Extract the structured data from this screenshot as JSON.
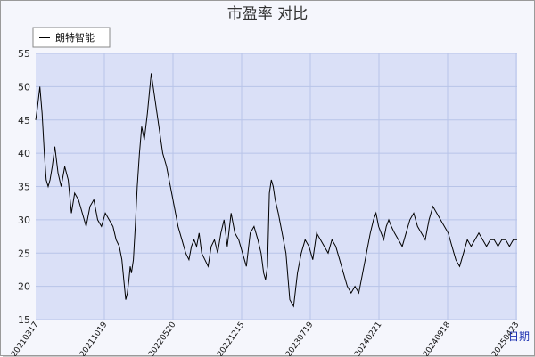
{
  "chart_data": {
    "type": "line",
    "title": "市盈率  对比",
    "xlabel": "日期",
    "ylabel": "",
    "ylim": [
      15,
      55
    ],
    "y_ticks": [
      15,
      20,
      25,
      30,
      35,
      40,
      45,
      50,
      55
    ],
    "x_tick_labels": [
      "20210317",
      "20211019",
      "20220520",
      "20221215",
      "20230719",
      "20240221",
      "20240918",
      "20250423"
    ],
    "legend": {
      "position": "top-left",
      "entries": [
        "朗特智能"
      ]
    },
    "grid": true,
    "colors": {
      "plot_bg": "#dae0f7",
      "line": "#000000",
      "grid": "#b8c4e8",
      "xlabel": "#1a2fb0"
    },
    "series": [
      {
        "name": "朗特智能",
        "x": [
          0,
          6,
          13,
          20,
          27,
          33,
          39,
          45,
          52,
          60,
          70,
          80,
          91,
          102,
          112,
          122,
          134,
          146,
          158,
          170,
          182,
          194,
          206,
          218,
          230,
          242,
          252,
          262,
          270,
          276,
          282,
          287,
          292,
          296,
          300,
          306,
          312,
          318,
          325,
          332,
          340,
          350,
          362,
          374,
          386,
          398,
          410,
          422,
          434,
          446,
          458,
          470,
          480,
          488,
          496,
          504,
          512,
          520,
          530,
          540,
          550,
          560,
          570,
          580,
          590,
          600,
          612,
          624,
          636,
          648,
          660,
          672,
          684,
          696,
          706,
          714,
          720,
          726,
          732,
          738,
          744,
          750,
          760,
          772,
          784,
          796,
          808,
          820,
          832,
          844,
          856,
          868,
          880,
          892,
          904,
          916,
          928,
          940,
          952,
          964,
          976,
          988,
          1000,
          1012,
          1024,
          1036,
          1048,
          1058,
          1066,
          1074,
          1082,
          1090,
          1098,
          1106,
          1114,
          1124,
          1136,
          1148,
          1160,
          1172,
          1184,
          1196,
          1208,
          1220,
          1232,
          1244,
          1256,
          1268,
          1280,
          1292,
          1304,
          1316,
          1328,
          1340,
          1352,
          1364,
          1376,
          1388,
          1400,
          1412,
          1424,
          1436,
          1448,
          1460,
          1472,
          1484,
          1496,
          1508
        ],
        "values": [
          45,
          47,
          50,
          46,
          40,
          36,
          35,
          36,
          38,
          41,
          37,
          35,
          38,
          36,
          31,
          34,
          33,
          31,
          29,
          32,
          33,
          30,
          29,
          31,
          30,
          29,
          27,
          26,
          24,
          21,
          18,
          19,
          21,
          23,
          22,
          24,
          29,
          35,
          40,
          44,
          42,
          46,
          52,
          48,
          44,
          40,
          38,
          35,
          32,
          29,
          27,
          25,
          24,
          26,
          27,
          26,
          28,
          25,
          24,
          23,
          26,
          27,
          25,
          28,
          30,
          26,
          31,
          28,
          27,
          25,
          23,
          28,
          29,
          27,
          25,
          22,
          21,
          23,
          34,
          36,
          35,
          33,
          31,
          28,
          25,
          18,
          17,
          22,
          25,
          27,
          26,
          24,
          28,
          27,
          26,
          25,
          27,
          26,
          24,
          22,
          20,
          19,
          20,
          19,
          22,
          25,
          28,
          30,
          31,
          29,
          28,
          27,
          29,
          30,
          29,
          28,
          27,
          26,
          28,
          30,
          31,
          29,
          28,
          27,
          30,
          32,
          31,
          30,
          29,
          28,
          26,
          24,
          23,
          25,
          27,
          26,
          27,
          28,
          27,
          26,
          27,
          27,
          26,
          27,
          27,
          26,
          27,
          27
        ]
      }
    ],
    "x_range": [
      0,
      1508
    ]
  }
}
